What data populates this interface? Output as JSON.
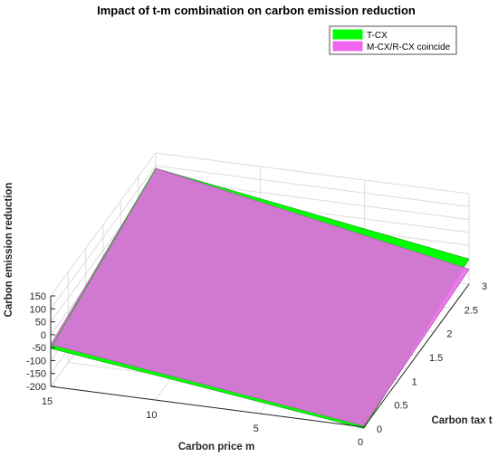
{
  "chart_data": {
    "type": "surface3d",
    "title": "Impact of t-m combination on carbon emission reduction",
    "xlabel": "Carbon tax t",
    "ylabel": "Carbon price m",
    "zlabel": "Carbon emission reduction",
    "xlim": [
      0,
      3
    ],
    "ylim": [
      0,
      15
    ],
    "zlim": [
      -200,
      150
    ],
    "xticks": [
      "0",
      "0.5",
      "1",
      "1.5",
      "2",
      "2.5",
      "3"
    ],
    "yticks": [
      "0",
      "5",
      "10",
      "15"
    ],
    "zticks": [
      "-200",
      "-150",
      "-100",
      "-50",
      "0",
      "50",
      "100",
      "150"
    ],
    "grid": true,
    "legend_position": "top-right",
    "series": [
      {
        "name": "T-CX",
        "color": "#00ff00",
        "grid_x": [
          0,
          3
        ],
        "grid_y": [
          0,
          15
        ],
        "z": [
          [
            -205,
            -103
          ],
          [
            -53,
            90
          ]
        ]
      },
      {
        "name": "M-CX/R-CX coincide",
        "color": "#ee66ee",
        "grid_x": [
          0,
          3
        ],
        "grid_y": [
          0,
          15
        ],
        "z": [
          [
            -195,
            -142
          ],
          [
            -38,
            90
          ]
        ]
      }
    ]
  }
}
